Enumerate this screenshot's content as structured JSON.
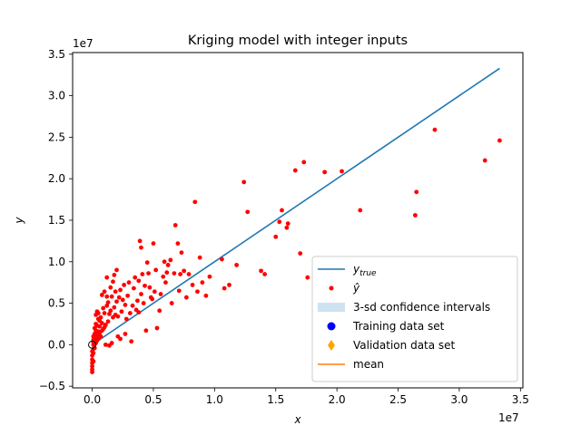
{
  "chart_data": {
    "type": "scatter",
    "title": "Kriging model with integer inputs",
    "xlabel": "x",
    "ylabel": "y",
    "x_offset_label": "1e7",
    "y_offset_label": "1e7",
    "xlim": [
      -1.6,
      35.2
    ],
    "ylim": [
      -5.2,
      35.2
    ],
    "xticks": [
      0.0,
      0.5,
      1.0,
      1.5,
      2.0,
      2.5,
      3.0,
      3.5
    ],
    "xtick_labels": [
      "0.0",
      "0.5",
      "1.0",
      "1.5",
      "2.0",
      "2.5",
      "3.0",
      "3.5"
    ],
    "xtick_scale": 10,
    "yticks": [
      -0.5,
      0.0,
      0.5,
      1.0,
      1.5,
      2.0,
      2.5,
      3.0,
      3.5
    ],
    "ytick_labels": [
      "−0.5",
      "0.0",
      "0.5",
      "1.0",
      "1.5",
      "2.0",
      "2.5",
      "3.0",
      "3.5"
    ],
    "ytick_scale": 10,
    "grid": false,
    "legend_position": "lower right",
    "legend": [
      {
        "label": "y",
        "sub": "true",
        "marker": "line",
        "color": "#1f77b4"
      },
      {
        "label": "ŷ",
        "sub": "",
        "marker": "dot",
        "color": "#ff0000"
      },
      {
        "label": "3-sd confidence intervals",
        "sub": "",
        "marker": "patch",
        "color": "#cfe2f0"
      },
      {
        "label": "Training data set",
        "sub": "",
        "marker": "circle",
        "color": "#0000ff"
      },
      {
        "label": "Validation data set",
        "sub": "",
        "marker": "diamond",
        "color": "#ffa500"
      },
      {
        "label": "mean",
        "sub": "",
        "marker": "line",
        "color": "#ff7f0e"
      }
    ],
    "series": [
      {
        "name": "y_true",
        "kind": "line",
        "color": "#1f77b4",
        "x": [
          0.0,
          33.3
        ],
        "y": [
          0.0,
          33.3
        ]
      },
      {
        "name": "ŷ",
        "kind": "scatter",
        "color": "#ff0000",
        "x": [
          0.0,
          0.0,
          0.0,
          0.0,
          0.0,
          0.0,
          0.0,
          0.1,
          0.1,
          0.1,
          0.1,
          0.1,
          0.1,
          0.1,
          0.2,
          0.2,
          0.2,
          0.2,
          0.2,
          0.3,
          0.3,
          0.3,
          0.3,
          0.3,
          0.4,
          0.4,
          0.4,
          0.4,
          0.5,
          0.5,
          0.5,
          0.5,
          0.6,
          0.6,
          0.6,
          0.7,
          0.7,
          0.8,
          0.8,
          0.8,
          0.9,
          0.9,
          1.0,
          1.0,
          1.0,
          1.1,
          1.1,
          1.2,
          1.2,
          1.3,
          1.3,
          1.4,
          1.4,
          1.5,
          1.5,
          1.6,
          1.6,
          1.7,
          1.7,
          1.8,
          1.8,
          1.9,
          2.0,
          2.0,
          2.1,
          2.1,
          2.2,
          2.3,
          2.3,
          2.4,
          2.5,
          2.6,
          2.7,
          2.8,
          2.9,
          3.0,
          3.1,
          3.2,
          3.3,
          3.4,
          3.5,
          3.6,
          3.7,
          3.8,
          3.9,
          4.0,
          4.0,
          4.1,
          4.2,
          4.3,
          4.4,
          4.5,
          4.6,
          4.8,
          4.9,
          5.0,
          5.1,
          5.2,
          5.3,
          5.5,
          5.6,
          5.8,
          6.0,
          6.1,
          6.2,
          6.4,
          6.5,
          6.7,
          6.8,
          7.0,
          7.1,
          7.3,
          7.5,
          7.7,
          7.9,
          8.2,
          8.4,
          8.6,
          8.8,
          9.0,
          9.3,
          9.6,
          10.6,
          10.8,
          11.2,
          11.8,
          12.4,
          12.7,
          13.8,
          14.1,
          15.0,
          15.3,
          15.5,
          15.9,
          16.0,
          16.6,
          17.0,
          17.3,
          17.6,
          19.0,
          20.4,
          21.9,
          26.4,
          26.5,
          28.0,
          32.1,
          33.3,
          0.2,
          0.3,
          0.6,
          1.2,
          1.9,
          2.7,
          3.8,
          4.7,
          5.9,
          7.2
        ],
        "y": [
          -3.3,
          -3.0,
          -2.6,
          -2.2,
          -1.8,
          -1.3,
          -0.8,
          -0.5,
          0.0,
          0.3,
          0.6,
          -1.0,
          -2.0,
          1.0,
          0.4,
          0.9,
          1.3,
          -0.4,
          2.0,
          0.2,
          0.8,
          1.5,
          2.5,
          3.6,
          0.5,
          1.2,
          2.3,
          4.0,
          0.7,
          1.6,
          3.1,
          3.8,
          0.9,
          2.2,
          1.4,
          1.0,
          3.3,
          1.7,
          2.6,
          6.0,
          1.9,
          4.4,
          2.1,
          3.8,
          6.4,
          0.0,
          2.4,
          4.7,
          8.1,
          2.8,
          5.1,
          -0.1,
          3.7,
          4.1,
          6.9,
          0.2,
          5.8,
          7.6,
          3.3,
          4.5,
          8.4,
          6.4,
          5.2,
          9.0,
          1.0,
          3.4,
          5.7,
          6.6,
          0.7,
          4.0,
          5.4,
          7.2,
          1.3,
          3.1,
          5.9,
          7.5,
          3.8,
          0.4,
          4.7,
          6.8,
          8.1,
          4.2,
          5.3,
          3.9,
          12.5,
          6.1,
          11.7,
          8.5,
          5.0,
          7.1,
          1.7,
          9.9,
          8.6,
          5.7,
          5.5,
          12.2,
          6.4,
          9.0,
          2.0,
          4.1,
          6.1,
          8.2,
          7.5,
          8.7,
          9.6,
          10.2,
          5.0,
          8.6,
          14.4,
          12.2,
          6.5,
          11.1,
          8.9,
          5.7,
          8.5,
          7.2,
          17.2,
          6.4,
          10.5,
          7.5,
          5.9,
          8.2,
          10.3,
          6.8,
          7.2,
          9.6,
          19.6,
          16.0,
          8.9,
          8.5,
          13.0,
          14.8,
          16.2,
          14.1,
          14.6,
          21.0,
          11.0,
          22.0,
          8.1,
          20.8,
          20.9,
          16.2,
          15.6,
          18.4,
          25.9,
          22.2,
          24.6,
          0.9,
          1.7,
          2.9,
          5.8,
          3.6,
          4.8,
          7.7,
          6.9,
          10.0,
          8.5
        ]
      },
      {
        "name": "Training data set",
        "kind": "scatter",
        "color": "#0000ff",
        "x": [
          0.0
        ],
        "y": [
          0.0
        ]
      }
    ]
  }
}
